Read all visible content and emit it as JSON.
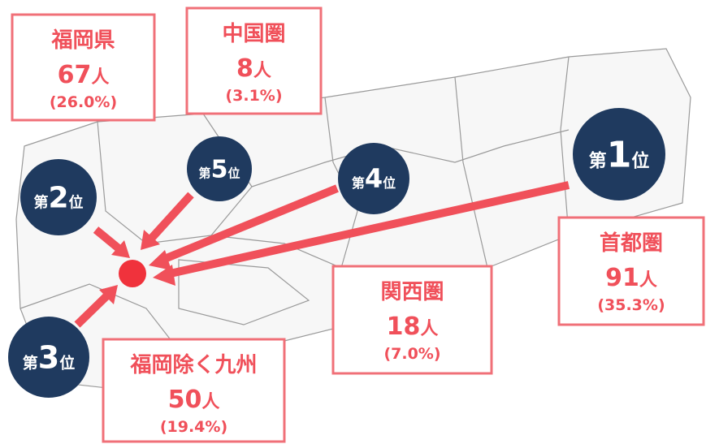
{
  "regions": [
    {
      "name": "福岡県",
      "count": "67",
      "unit": "人",
      "share": "(26.0%)"
    },
    {
      "name": "中国圏",
      "count": "8",
      "unit": "人",
      "share": "(3.1%)"
    },
    {
      "name": "首都圏",
      "count": "91",
      "unit": "人",
      "share": "(35.3%)"
    },
    {
      "name": "関西圏",
      "count": "18",
      "unit": "人",
      "share": "(7.0%)"
    },
    {
      "name": "福岡除く九州",
      "count": "50",
      "unit": "人",
      "share": "(19.4%)"
    }
  ],
  "ranks": [
    {
      "prefix": "第",
      "number": "1",
      "suffix": "位"
    },
    {
      "prefix": "第",
      "number": "2",
      "suffix": "位"
    },
    {
      "prefix": "第",
      "number": "3",
      "suffix": "位"
    },
    {
      "prefix": "第",
      "number": "4",
      "suffix": "位"
    },
    {
      "prefix": "第",
      "number": "5",
      "suffix": "位"
    }
  ]
}
